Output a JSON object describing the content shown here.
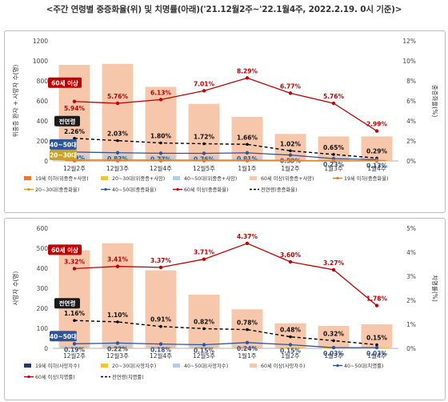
{
  "page_title": "<주간 연령별 중증화율(위) 및 치명률(아래)('21.12월2주~'22.1월4주, 2022.2.19. 0시 기준)>",
  "chart_data": [
    {
      "type": "bar",
      "categories": [
        "12월2주",
        "12월3주",
        "12월4주",
        "12월5주",
        "1월1주",
        "1월2주",
        "1월3주",
        "1월4주"
      ],
      "ylabel": "위중증 환자 + 사망자 수(명)",
      "y2label": "중증화율(%)",
      "ylim": [
        0,
        1200
      ],
      "y_ticks": [
        "0",
        "200",
        "400",
        "600",
        "800",
        "1000",
        "1200"
      ],
      "y2lim": [
        0,
        12
      ],
      "y2_ticks": [
        "0%",
        "2%",
        "4%",
        "6%",
        "8%",
        "10%",
        "12%"
      ],
      "bars": {
        "name": "60세 이상(위중증+사망)",
        "values": [
          960,
          970,
          740,
          570,
          440,
          270,
          245,
          245
        ]
      },
      "small_bars": [
        {
          "name": "40~50대(위중증+사망)",
          "values": [
            55,
            60,
            50,
            45,
            35,
            15,
            10,
            8
          ]
        },
        {
          "name": "20~30대(위중증+사망)",
          "values": [
            20,
            25,
            20,
            18,
            15,
            6,
            4,
            3
          ]
        },
        {
          "name": "19세 이하(위중증+사망)",
          "values": [
            3,
            3,
            3,
            3,
            2,
            2,
            1,
            1
          ]
        }
      ],
      "lines": [
        {
          "name": "60세 이상(중증화율)",
          "color": "#c00000",
          "dashed": false,
          "values": [
            5.94,
            5.76,
            6.13,
            7.01,
            8.29,
            6.77,
            5.76,
            2.99
          ],
          "labels": [
            "5.94%",
            "5.76%",
            "6.13%",
            "7.01%",
            "8.29%",
            "6.77%",
            "5.76%",
            "2.99%"
          ]
        },
        {
          "name": "전연령(중증화율)",
          "color": "#000000",
          "dashed": true,
          "values": [
            2.26,
            2.03,
            1.8,
            1.72,
            1.66,
            1.02,
            0.65,
            0.29
          ],
          "labels": [
            "2.26%",
            "2.03%",
            "1.80%",
            "1.72%",
            "1.66%",
            "1.02%",
            "0.65%",
            "0.29%"
          ]
        },
        {
          "name": "40~50대(중증화율)",
          "color": "#2f5597",
          "dashed": false,
          "values": [
            0.89,
            0.82,
            0.77,
            0.76,
            0.81,
            0.59,
            0.23,
            0.13
          ],
          "labels": [
            "0.89%",
            "0.82%",
            "0.77%",
            "0.76%",
            "0.81%",
            "0.59%",
            "0.23%",
            "0.13%"
          ]
        },
        {
          "name": "20~30대(중증화율)",
          "color": "#d4a017",
          "dashed": false,
          "values": [
            0.12,
            0.12,
            0.11,
            0.1,
            0.1,
            0.06,
            0.03,
            0.02
          ],
          "labels": []
        },
        {
          "name": "19세 이하(중증화율)",
          "color": "#e07b39",
          "dashed": false,
          "values": [
            0.01,
            0.01,
            0.01,
            0.01,
            0.01,
            0.01,
            0.0,
            0.0
          ],
          "labels": []
        }
      ],
      "tags": {
        "sixty": "60세 이상",
        "all": "전연령",
        "fortyfifty": "40~50대",
        "twentythirty": "20~30대"
      },
      "legend": {
        "placement": "bottom",
        "items": [
          {
            "label": "19세 이하(위중증+사망)",
            "kind": "bar",
            "color": "#e07b39"
          },
          {
            "label": "20~30대(위중증+사망)",
            "kind": "bar",
            "color": "#f4c242"
          },
          {
            "label": "40~50대(위중증+사망)",
            "kind": "bar",
            "color": "#b4cde6"
          },
          {
            "label": "60세 이상(위중증+사망)",
            "kind": "bar",
            "color": "#f7c7ac"
          },
          {
            "label": "19세 이하(중증화율)",
            "kind": "line",
            "color": "#e07b39"
          },
          {
            "label": "20~30대(중증화율)",
            "kind": "line",
            "color": "#d4a017"
          },
          {
            "label": "40~50대(중증화율)",
            "kind": "line",
            "color": "#2f5597"
          },
          {
            "label": "60세 이상(중증화율)",
            "kind": "line",
            "color": "#c00000"
          },
          {
            "label": "전연령(중증화율)",
            "kind": "dash",
            "color": "#000000"
          }
        ]
      }
    },
    {
      "type": "bar",
      "categories": [
        "12월2주",
        "12월3주",
        "12월4주",
        "12월5주",
        "1월1주",
        "1월2주",
        "1월3주",
        "1월4주"
      ],
      "ylabel": "사망자 수(명)",
      "y2label": "치명률(%)",
      "ylim": [
        0,
        600
      ],
      "y_ticks": [
        "0",
        "100",
        "200",
        "300",
        "400",
        "500",
        "600"
      ],
      "y2lim": [
        0,
        5
      ],
      "y2_ticks": [
        "0%",
        "1%",
        "2%",
        "3%",
        "4%",
        "5%"
      ],
      "bars": {
        "name": "60세 이상(사망자수)",
        "values": [
          490,
          525,
          390,
          268,
          195,
          125,
          112,
          120
        ]
      },
      "small_bars": [
        {
          "name": "40~50대(사망자수)",
          "values": [
            15,
            18,
            14,
            12,
            10,
            6,
            3,
            2
          ]
        },
        {
          "name": "20~30대(사망자수)",
          "values": [
            3,
            3,
            3,
            2,
            2,
            1,
            1,
            1
          ]
        },
        {
          "name": "19세 이하(사망자수)",
          "values": [
            1,
            1,
            1,
            1,
            1,
            0,
            0,
            0
          ]
        }
      ],
      "lines": [
        {
          "name": "60세 이상(치명률)",
          "color": "#c00000",
          "dashed": false,
          "values": [
            3.32,
            3.41,
            3.37,
            3.71,
            4.37,
            3.6,
            3.27,
            1.78
          ],
          "labels": [
            "3.32%",
            "3.41%",
            "3.37%",
            "3.71%",
            "4.37%",
            "3.60%",
            "3.27%",
            "1.78%"
          ]
        },
        {
          "name": "전연령(치명률)",
          "color": "#000000",
          "dashed": true,
          "values": [
            1.16,
            1.1,
            0.91,
            0.82,
            0.78,
            0.48,
            0.32,
            0.15
          ],
          "labels": [
            "1.16%",
            "1.10%",
            "0.91%",
            "0.82%",
            "0.78%",
            "0.48%",
            "0.32%",
            "0.15%"
          ]
        },
        {
          "name": "40~50대(치명률)",
          "color": "#2f5597",
          "dashed": false,
          "values": [
            0.19,
            0.22,
            0.18,
            0.15,
            0.24,
            0.15,
            0.03,
            0.03
          ],
          "labels": [
            "0.19%",
            "0.22%",
            "0.18%",
            "0.15%",
            "0.24%",
            "0.15%",
            "0.03%",
            "0.03%"
          ]
        }
      ],
      "tags": {
        "sixty": "60세 이상",
        "all": "전연령",
        "fortyfifty": "40~50대"
      },
      "legend": {
        "placement": "bottom",
        "items": [
          {
            "label": "19세 이하(사망자수)",
            "kind": "bar",
            "color": "#1f3864"
          },
          {
            "label": "20~30대(사망자수)",
            "kind": "bar",
            "color": "#f4c242"
          },
          {
            "label": "40~50대(사망자수)",
            "kind": "bar",
            "color": "#b4cde6"
          },
          {
            "label": "60세 이상(사망자수)",
            "kind": "bar",
            "color": "#f7c7ac"
          },
          {
            "label": "40~50대(치명률)",
            "kind": "line",
            "color": "#2f5597"
          },
          {
            "label": "60세 이상(치명률)",
            "kind": "line",
            "color": "#c00000"
          },
          {
            "label": "전연령(치명률)",
            "kind": "dash",
            "color": "#000000"
          }
        ]
      }
    }
  ],
  "colors": {
    "bar_sixty": "#f7c7ac",
    "bar_fortyfifty": "#b4cde6",
    "bar_twentythirty": "#f4c242",
    "tag_red": "#c00000",
    "tag_black": "#1a1a1a",
    "tag_blue": "#2f5597",
    "tag_gold": "#c9a227"
  }
}
